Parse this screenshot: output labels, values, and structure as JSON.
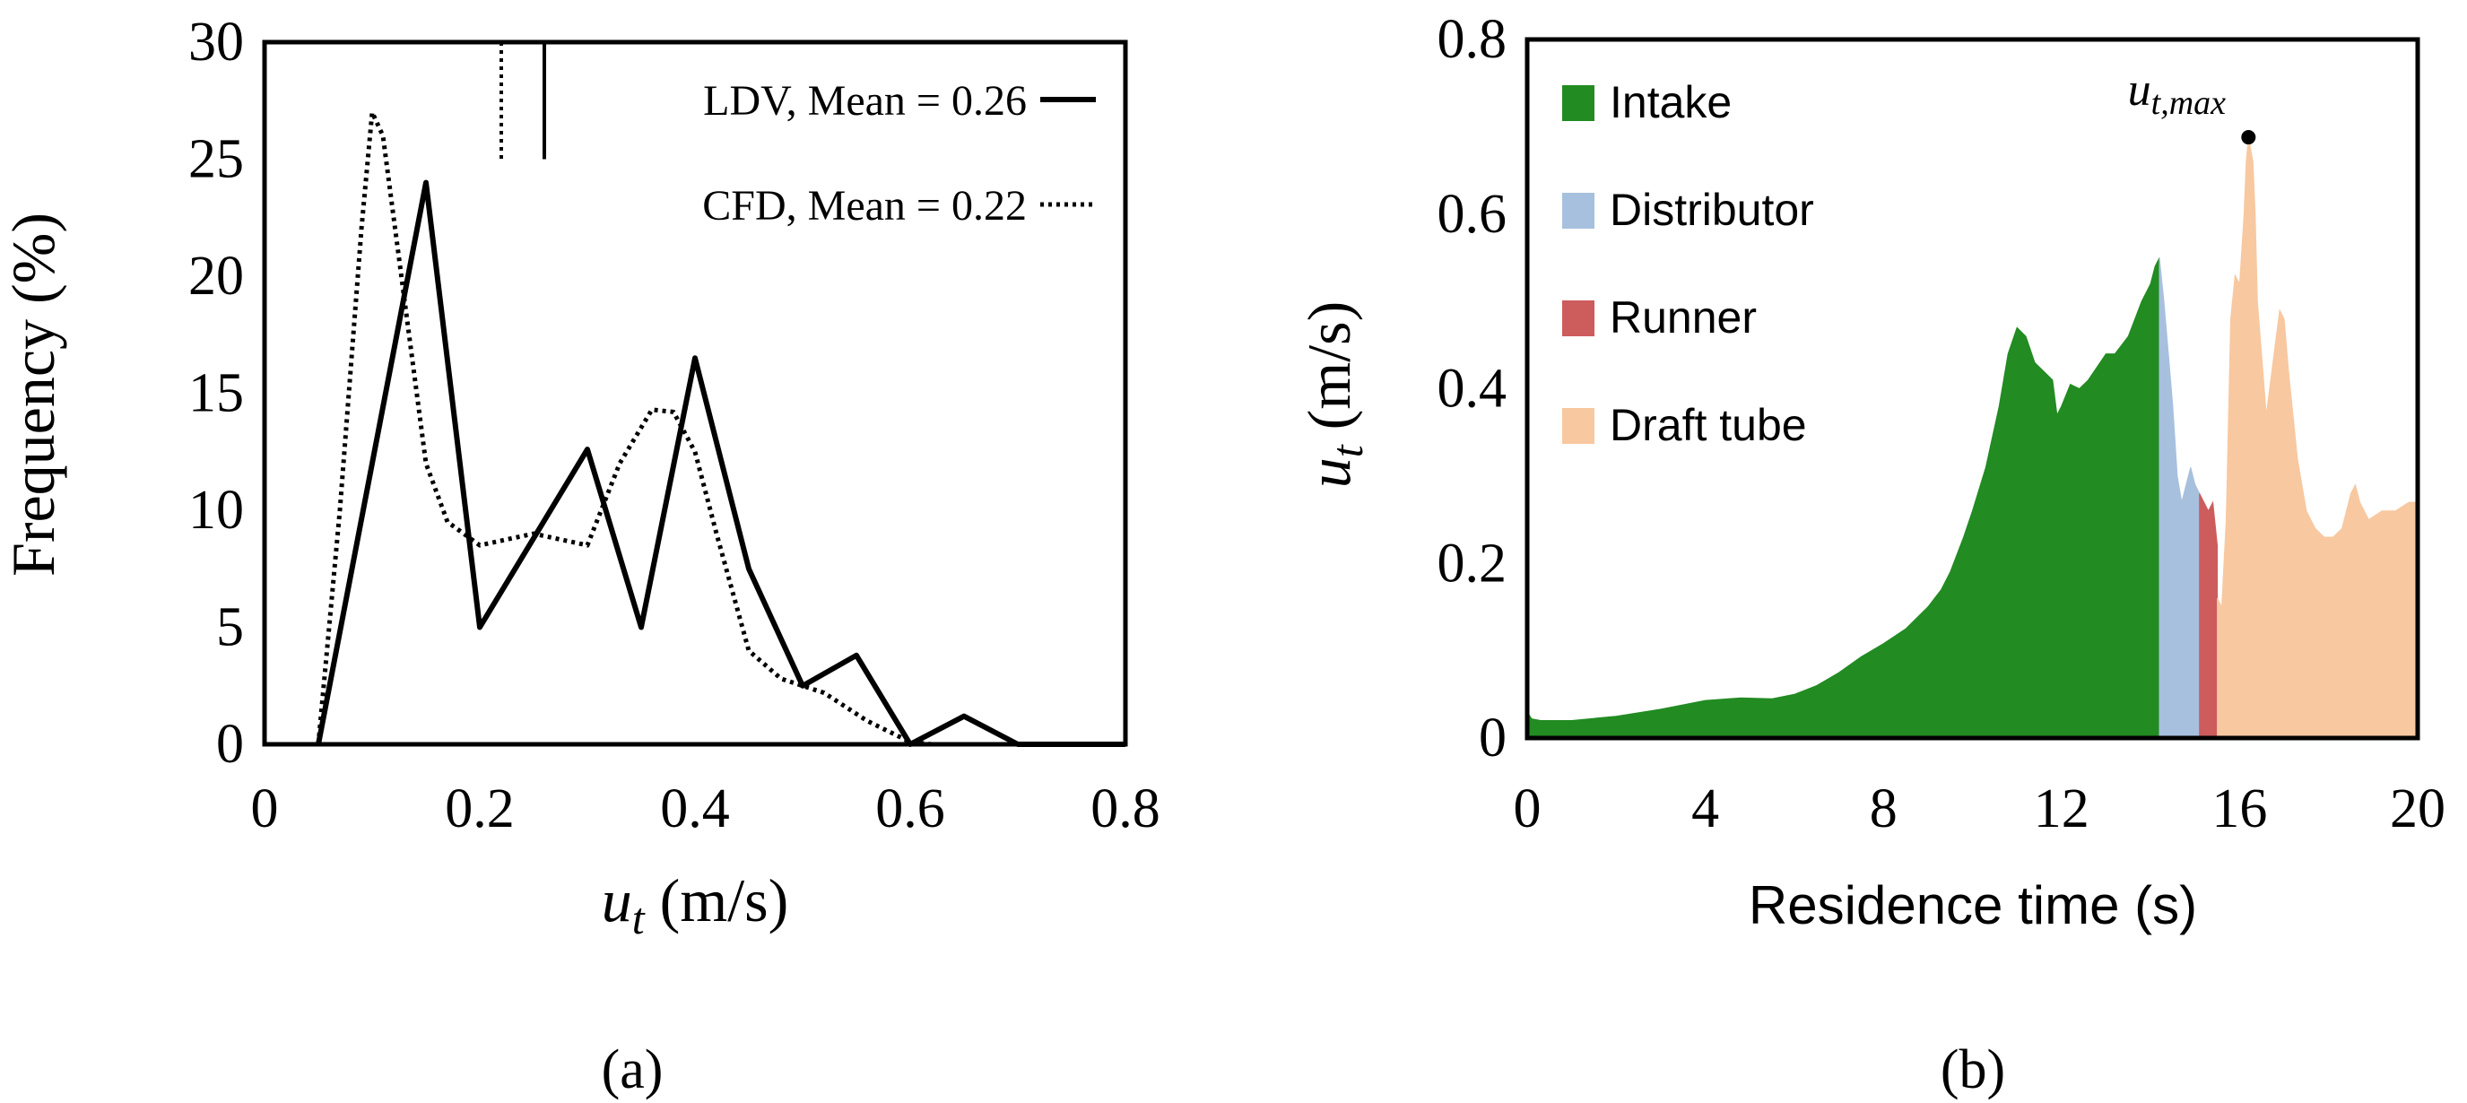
{
  "chart_data": [
    {
      "type": "line",
      "panel_label": "(a)",
      "xlabel": "u",
      "xlabel_sub": "t",
      "xlabel_unit": " (m/s)",
      "ylabel": "Frequency (%)",
      "xlim": [
        0,
        0.8
      ],
      "ylim": [
        0,
        30
      ],
      "xticks": [
        "0",
        "0.2",
        "0.4",
        "0.6",
        "0.8"
      ],
      "yticks": [
        "0",
        "5",
        "10",
        "15",
        "20",
        "25",
        "30"
      ],
      "series": [
        {
          "name": "LDV, Mean = 0.26",
          "style": "solid",
          "mean": 0.26,
          "x": [
            0.05,
            0.15,
            0.2,
            0.3,
            0.35,
            0.4,
            0.45,
            0.5,
            0.55,
            0.6,
            0.65,
            0.7,
            0.8
          ],
          "y": [
            0,
            24,
            5,
            12.6,
            5,
            16.5,
            7.5,
            2.5,
            3.8,
            0,
            1.2,
            0,
            0
          ]
        },
        {
          "name": "CFD, Mean = 0.22",
          "style": "dotted",
          "mean": 0.22,
          "x": [
            0.05,
            0.07,
            0.09,
            0.1,
            0.11,
            0.13,
            0.15,
            0.17,
            0.2,
            0.25,
            0.3,
            0.33,
            0.36,
            0.38,
            0.4,
            0.42,
            0.45,
            0.48,
            0.52,
            0.56,
            0.6,
            0.62
          ],
          "y": [
            0,
            10,
            22,
            27,
            26,
            19,
            12,
            9.5,
            8.5,
            9,
            8.5,
            12,
            14.3,
            14.2,
            12.5,
            9,
            4,
            2.8,
            2.2,
            1,
            0.1,
            0
          ]
        }
      ]
    },
    {
      "type": "area",
      "panel_label": "(b)",
      "xlabel": "Residence time (s)",
      "ylabel": "u",
      "ylabel_sub": "t",
      "ylabel_unit": " (m/s)",
      "xlim": [
        0,
        20
      ],
      "ylim": [
        0,
        0.8
      ],
      "xticks": [
        "0",
        "4",
        "8",
        "12",
        "16",
        "20"
      ],
      "yticks": [
        "0",
        "0.2",
        "0.4",
        "0.6",
        "0.8"
      ],
      "annotation": {
        "label": "u",
        "sub": "t,max",
        "x": 16.2,
        "y": 0.688
      },
      "series": [
        {
          "name": "Intake",
          "color": "#228b22",
          "x": [
            0,
            0.1,
            0.3,
            1,
            2,
            3,
            4,
            4.8,
            5.5,
            6,
            6.5,
            7,
            7.5,
            8,
            8.5,
            9,
            9.3,
            9.5,
            9.8,
            10,
            10.3,
            10.6,
            10.8,
            11,
            11.2,
            11.4,
            11.6,
            11.8,
            11.9,
            12,
            12.2,
            12.4,
            12.6,
            13,
            13.2,
            13.5,
            13.8,
            14,
            14.1,
            14.2
          ],
          "y": [
            0.03,
            0.022,
            0.02,
            0.02,
            0.025,
            0.033,
            0.043,
            0.046,
            0.045,
            0.05,
            0.06,
            0.075,
            0.093,
            0.108,
            0.125,
            0.15,
            0.17,
            0.19,
            0.23,
            0.26,
            0.31,
            0.38,
            0.44,
            0.47,
            0.46,
            0.43,
            0.42,
            0.41,
            0.37,
            0.38,
            0.405,
            0.4,
            0.41,
            0.44,
            0.44,
            0.46,
            0.5,
            0.52,
            0.54,
            0.55
          ]
        },
        {
          "name": "Distributor",
          "color": "#a7c0de",
          "x": [
            14.2,
            14.3,
            14.4,
            14.5,
            14.6,
            14.7,
            14.8,
            14.9,
            15,
            15.1
          ],
          "y": [
            0.55,
            0.5,
            0.44,
            0.38,
            0.3,
            0.27,
            0.29,
            0.31,
            0.29,
            0.28
          ]
        },
        {
          "name": "Runner",
          "color": "#cd5c5c",
          "x": [
            15.1,
            15.2,
            15.3,
            15.4,
            15.5
          ],
          "y": [
            0.28,
            0.27,
            0.26,
            0.27,
            0.22
          ]
        },
        {
          "name": "Draft tube",
          "color": "#f8c8a0",
          "x": [
            15.5,
            15.6,
            15.7,
            15.8,
            15.9,
            16,
            16.1,
            16.15,
            16.2,
            16.3,
            16.35,
            16.4,
            16.6,
            16.8,
            16.9,
            17,
            17.1,
            17.3,
            17.5,
            17.7,
            17.9,
            18.1,
            18.3,
            18.5,
            18.6,
            18.7,
            18.9,
            19.2,
            19.5,
            19.8,
            20
          ],
          "y": [
            0.16,
            0.15,
            0.25,
            0.48,
            0.53,
            0.52,
            0.6,
            0.66,
            0.688,
            0.66,
            0.6,
            0.5,
            0.37,
            0.45,
            0.49,
            0.48,
            0.42,
            0.32,
            0.26,
            0.24,
            0.23,
            0.23,
            0.24,
            0.28,
            0.29,
            0.27,
            0.25,
            0.26,
            0.26,
            0.27,
            0.27
          ]
        }
      ]
    }
  ]
}
